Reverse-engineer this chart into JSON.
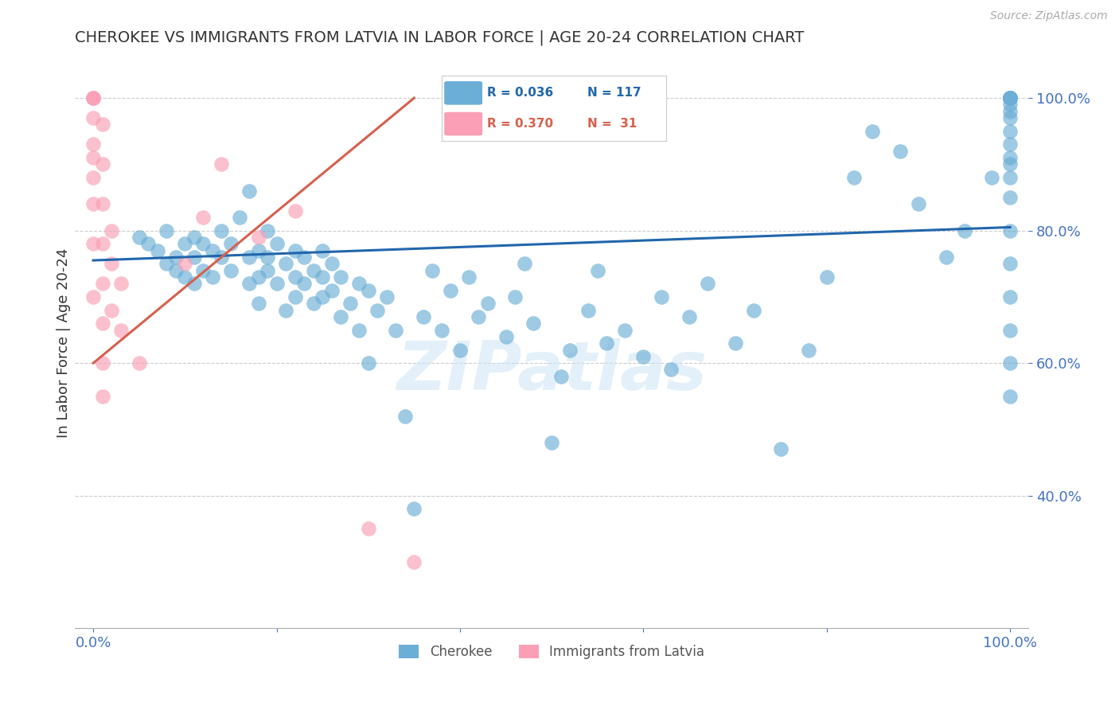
{
  "title": "CHEROKEE VS IMMIGRANTS FROM LATVIA IN LABOR FORCE | AGE 20-24 CORRELATION CHART",
  "source": "Source: ZipAtlas.com",
  "ylabel": "In Labor Force | Age 20-24",
  "watermark": "ZIPatlas",
  "legend_blue_R": "R = 0.036",
  "legend_blue_N": "N = 117",
  "legend_pink_R": "R = 0.370",
  "legend_pink_N": "N =  31",
  "blue_color": "#6baed6",
  "pink_color": "#fa9fb5",
  "blue_line_color": "#2166ac",
  "pink_line_color": "#d6604d",
  "grid_color": "#cccccc",
  "title_color": "#333333",
  "axis_label_color": "#4472c4",
  "xlim": [
    -0.02,
    1.02
  ],
  "ylim": [
    0.2,
    1.06
  ],
  "blue_scatter_x": [
    0.05,
    0.06,
    0.07,
    0.08,
    0.08,
    0.09,
    0.09,
    0.1,
    0.1,
    0.11,
    0.11,
    0.11,
    0.12,
    0.12,
    0.13,
    0.13,
    0.14,
    0.14,
    0.15,
    0.15,
    0.16,
    0.17,
    0.17,
    0.17,
    0.18,
    0.18,
    0.18,
    0.19,
    0.19,
    0.19,
    0.2,
    0.2,
    0.21,
    0.21,
    0.22,
    0.22,
    0.22,
    0.23,
    0.23,
    0.24,
    0.24,
    0.25,
    0.25,
    0.25,
    0.26,
    0.26,
    0.27,
    0.27,
    0.28,
    0.29,
    0.29,
    0.3,
    0.3,
    0.31,
    0.32,
    0.33,
    0.34,
    0.35,
    0.36,
    0.37,
    0.38,
    0.39,
    0.4,
    0.41,
    0.42,
    0.43,
    0.45,
    0.46,
    0.47,
    0.48,
    0.5,
    0.51,
    0.52,
    0.54,
    0.55,
    0.56,
    0.58,
    0.6,
    0.62,
    0.63,
    0.65,
    0.67,
    0.7,
    0.72,
    0.75,
    0.78,
    0.8,
    0.83,
    0.85,
    0.88,
    0.9,
    0.93,
    0.95,
    0.98,
    1.0,
    1.0,
    1.0,
    1.0,
    1.0,
    1.0,
    1.0,
    1.0,
    1.0,
    1.0,
    1.0,
    1.0,
    1.0,
    1.0,
    1.0,
    1.0,
    1.0,
    1.0,
    1.0,
    1.0,
    1.0,
    1.0,
    1.0
  ],
  "blue_scatter_y": [
    0.79,
    0.78,
    0.77,
    0.8,
    0.75,
    0.74,
    0.76,
    0.78,
    0.73,
    0.79,
    0.76,
    0.72,
    0.78,
    0.74,
    0.77,
    0.73,
    0.76,
    0.8,
    0.74,
    0.78,
    0.82,
    0.86,
    0.76,
    0.72,
    0.77,
    0.73,
    0.69,
    0.76,
    0.8,
    0.74,
    0.78,
    0.72,
    0.75,
    0.68,
    0.77,
    0.73,
    0.7,
    0.76,
    0.72,
    0.74,
    0.69,
    0.73,
    0.77,
    0.7,
    0.75,
    0.71,
    0.73,
    0.67,
    0.69,
    0.72,
    0.65,
    0.71,
    0.6,
    0.68,
    0.7,
    0.65,
    0.52,
    0.38,
    0.67,
    0.74,
    0.65,
    0.71,
    0.62,
    0.73,
    0.67,
    0.69,
    0.64,
    0.7,
    0.75,
    0.66,
    0.48,
    0.58,
    0.62,
    0.68,
    0.74,
    0.63,
    0.65,
    0.61,
    0.7,
    0.59,
    0.67,
    0.72,
    0.63,
    0.68,
    0.47,
    0.62,
    0.73,
    0.88,
    0.95,
    0.92,
    0.84,
    0.76,
    0.8,
    0.88,
    1.0,
    1.0,
    1.0,
    1.0,
    1.0,
    1.0,
    1.0,
    1.0,
    0.99,
    0.98,
    0.97,
    0.95,
    0.93,
    0.91,
    0.9,
    0.88,
    0.85,
    0.8,
    0.75,
    0.7,
    0.65,
    0.6,
    0.55
  ],
  "pink_scatter_x": [
    0.0,
    0.0,
    0.0,
    0.0,
    0.0,
    0.0,
    0.0,
    0.0,
    0.0,
    0.0,
    0.01,
    0.01,
    0.01,
    0.01,
    0.01,
    0.01,
    0.01,
    0.01,
    0.02,
    0.02,
    0.02,
    0.03,
    0.03,
    0.05,
    0.1,
    0.12,
    0.14,
    0.18,
    0.22,
    0.3,
    0.35
  ],
  "pink_scatter_y": [
    1.0,
    1.0,
    1.0,
    0.97,
    0.93,
    0.91,
    0.88,
    0.84,
    0.78,
    0.7,
    0.96,
    0.9,
    0.84,
    0.78,
    0.72,
    0.66,
    0.6,
    0.55,
    0.8,
    0.75,
    0.68,
    0.72,
    0.65,
    0.6,
    0.75,
    0.82,
    0.9,
    0.79,
    0.83,
    0.35,
    0.3
  ],
  "blue_trend_x": [
    0.0,
    1.0
  ],
  "blue_trend_y": [
    0.755,
    0.805
  ],
  "pink_trend_x": [
    0.0,
    0.35
  ],
  "pink_trend_y": [
    0.6,
    1.0
  ]
}
